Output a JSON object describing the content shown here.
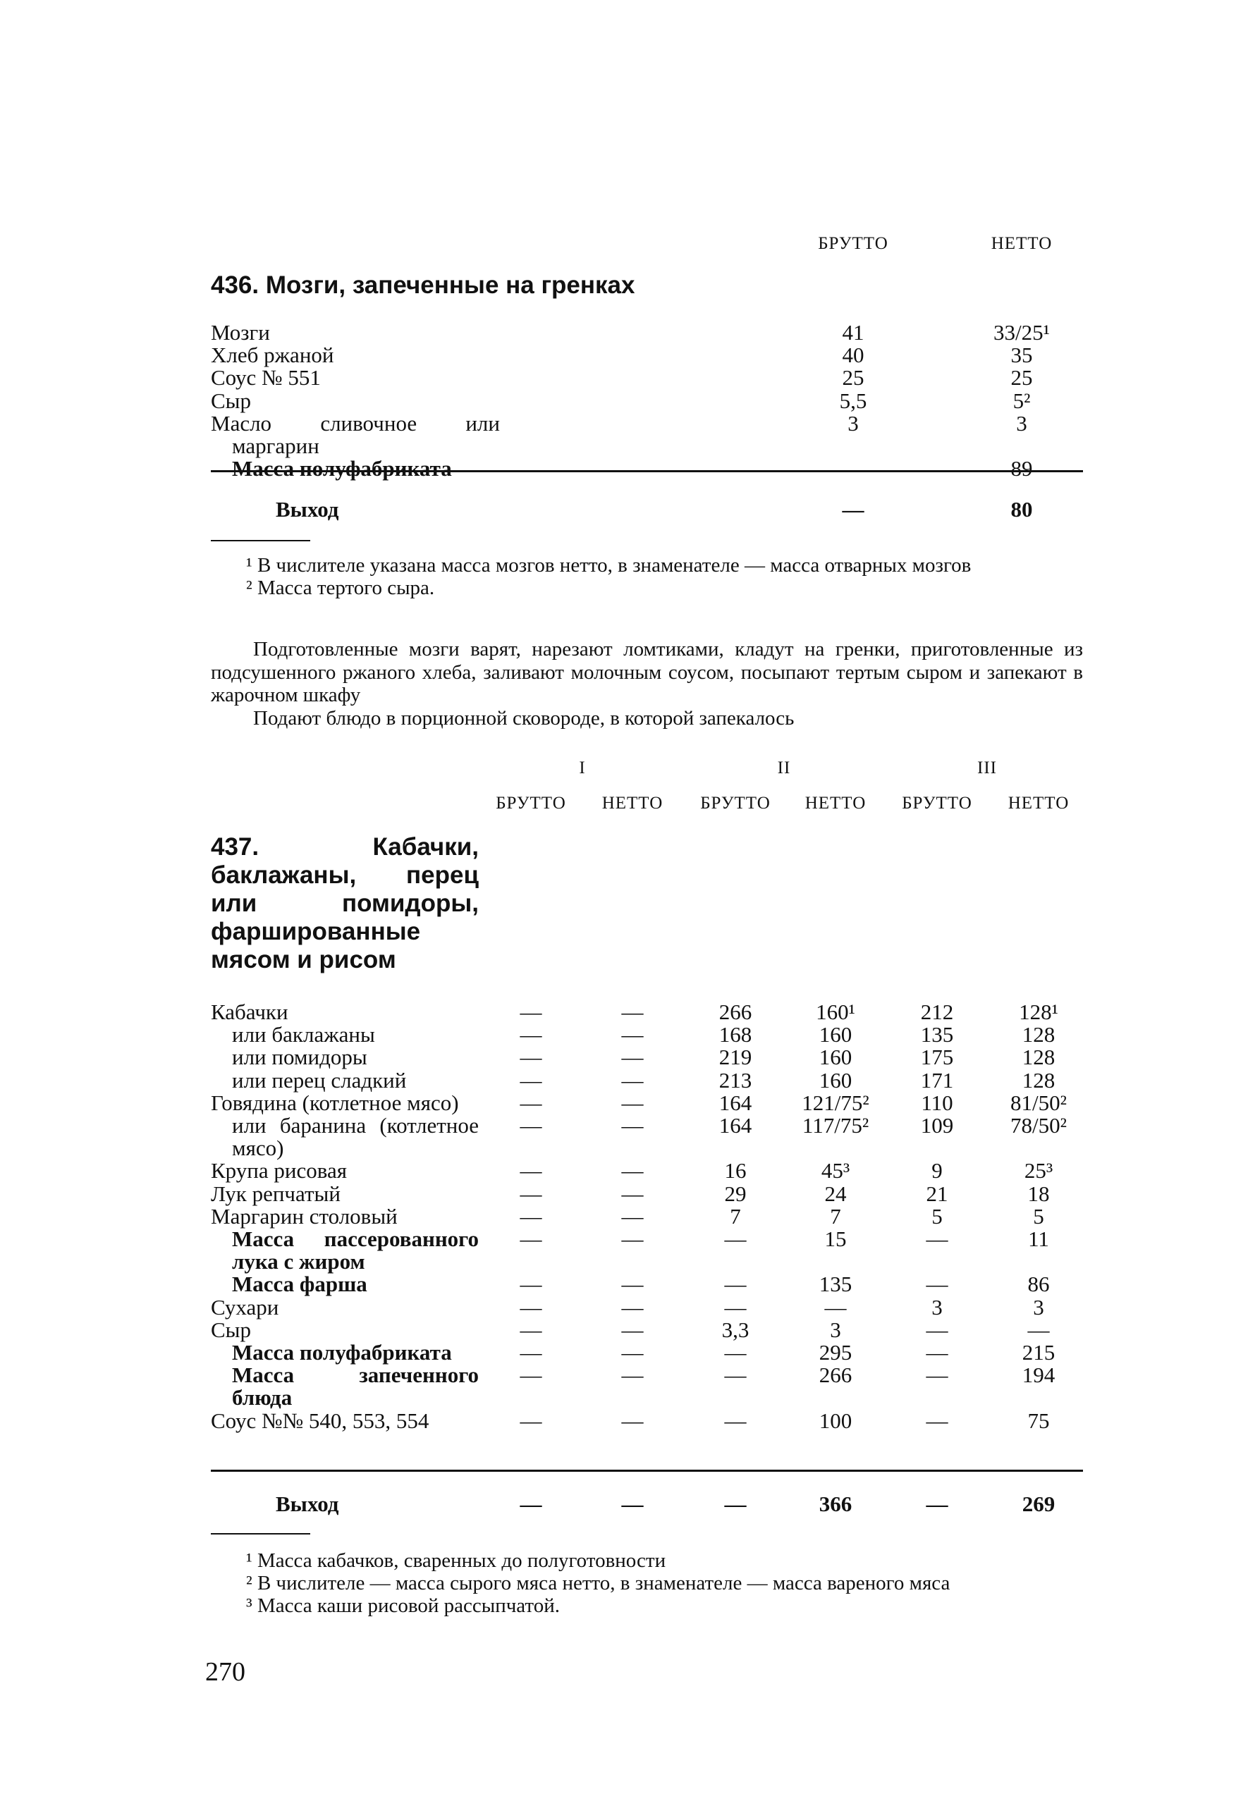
{
  "recipe436": {
    "col_headers": [
      "БРУТТО",
      "НЕТТО"
    ],
    "title": "436. Мозги, запеченные на гренках",
    "rows": [
      {
        "label": "Мозги",
        "bold": false,
        "indent": false,
        "values": [
          "41",
          "33/25¹"
        ]
      },
      {
        "label": "Хлеб ржаной",
        "bold": false,
        "indent": false,
        "values": [
          "40",
          "35"
        ]
      },
      {
        "label": "Соус № 551",
        "bold": false,
        "indent": false,
        "values": [
          "25",
          "25"
        ]
      },
      {
        "label": "Сыр",
        "bold": false,
        "indent": false,
        "values": [
          "5,5",
          "5²"
        ]
      },
      {
        "label": "Масло сливочное или маргарин",
        "bold": false,
        "indent": false,
        "values": [
          "3",
          "3"
        ]
      },
      {
        "label": "Масса полуфабриката",
        "bold": true,
        "indent": true,
        "values": [
          "—",
          "89"
        ]
      }
    ],
    "output": {
      "label": "Выход",
      "values": [
        "—",
        "80"
      ]
    },
    "footnotes": [
      "¹ В числителе указана масса мозгов нетто, в знаменателе — масса отварных мозгов",
      "² Масса тертого сыра."
    ],
    "paragraphs": [
      "Подготовленные мозги варят, нарезают ломтиками, кладут на гренки, приготовленные из подсушенного ржаного хлеба, заливают молочным соусом, посыпают тертым сыром и запекают в жарочном шкафу",
      "Подают блюдо в порционной сковороде, в которой запекалось"
    ]
  },
  "recipe437": {
    "groups": [
      "I",
      "II",
      "III"
    ],
    "col_headers": [
      "БРУТТО",
      "НЕТТО",
      "БРУТТО",
      "НЕТТО",
      "БРУТТО",
      "НЕТТО"
    ],
    "title": "437. Кабачки, баклажаны, перец или помидоры, фаршированные мясом и рисом",
    "rows": [
      {
        "label": "Кабачки",
        "bold": false,
        "indent": false,
        "values": [
          "—",
          "—",
          "266",
          "160¹",
          "212",
          "128¹"
        ]
      },
      {
        "label": "или баклажаны",
        "bold": false,
        "indent": true,
        "values": [
          "—",
          "—",
          "168",
          "160",
          "135",
          "128"
        ]
      },
      {
        "label": "или помидоры",
        "bold": false,
        "indent": true,
        "values": [
          "—",
          "—",
          "219",
          "160",
          "175",
          "128"
        ]
      },
      {
        "label": "или перец сладкий",
        "bold": false,
        "indent": true,
        "values": [
          "—",
          "—",
          "213",
          "160",
          "171",
          "128"
        ]
      },
      {
        "label": "Говядина (котлетное мясо)",
        "bold": false,
        "indent": false,
        "values": [
          "—",
          "—",
          "164",
          "121/75²",
          "110",
          "81/50²"
        ]
      },
      {
        "label": "или баранина (котлетное мясо)",
        "bold": false,
        "indent": true,
        "values": [
          "—",
          "—",
          "164",
          "117/75²",
          "109",
          "78/50²"
        ]
      },
      {
        "label": "Крупа рисовая",
        "bold": false,
        "indent": false,
        "values": [
          "—",
          "—",
          "16",
          "45³",
          "9",
          "25³"
        ]
      },
      {
        "label": "Лук репчатый",
        "bold": false,
        "indent": false,
        "values": [
          "—",
          "—",
          "29",
          "24",
          "21",
          "18"
        ]
      },
      {
        "label": "Маргарин столовый",
        "bold": false,
        "indent": false,
        "values": [
          "—",
          "—",
          "7",
          "7",
          "5",
          "5"
        ]
      },
      {
        "label": "Масса пассерованного лука с жиром",
        "bold": true,
        "indent": true,
        "values": [
          "—",
          "—",
          "—",
          "15",
          "—",
          "11"
        ]
      },
      {
        "label": "Масса фарша",
        "bold": true,
        "indent": true,
        "values": [
          "—",
          "—",
          "—",
          "135",
          "—",
          "86"
        ]
      },
      {
        "label": "Сухари",
        "bold": false,
        "indent": false,
        "values": [
          "—",
          "—",
          "—",
          "—",
          "3",
          "3"
        ]
      },
      {
        "label": "Сыр",
        "bold": false,
        "indent": false,
        "values": [
          "—",
          "—",
          "3,3",
          "3",
          "—",
          "—"
        ]
      },
      {
        "label": "Масса полуфабриката",
        "bold": true,
        "indent": true,
        "values": [
          "—",
          "—",
          "—",
          "295",
          "—",
          "215"
        ]
      },
      {
        "label": "Масса запеченного блюда",
        "bold": true,
        "indent": true,
        "values": [
          "—",
          "—",
          "—",
          "266",
          "—",
          "194"
        ]
      },
      {
        "label": "Соус №№ 540, 553, 554",
        "bold": false,
        "indent": false,
        "values": [
          "—",
          "—",
          "—",
          "100",
          "—",
          "75"
        ]
      }
    ],
    "output": {
      "label": "Выход",
      "values": [
        "—",
        "—",
        "—",
        "366",
        "—",
        "269"
      ]
    },
    "footnotes": [
      "¹ Масса кабачков, сваренных до полуготовности",
      "² В числителе — масса сырого мяса нетто, в знаменателе — масса вареного мяса",
      "³ Масса каши рисовой рассыпчатой."
    ]
  },
  "page_number": "270"
}
